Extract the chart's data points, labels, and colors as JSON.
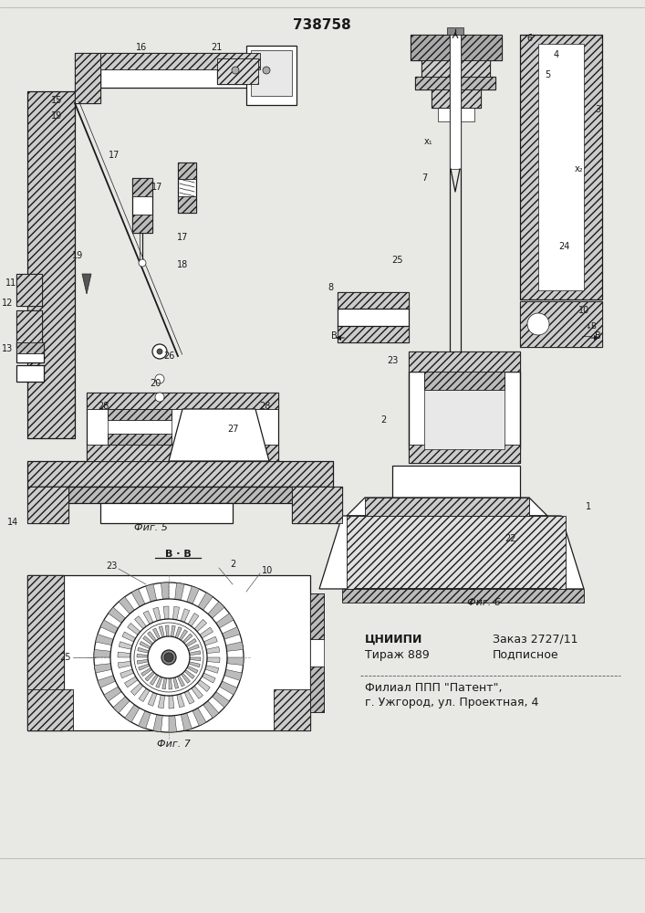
{
  "patent_number": "738758",
  "bg_color": "#e8e8e4",
  "lc": "#1a1a1a",
  "fig5_label": "Фиг. 5",
  "fig6_label": "Фиг. 6",
  "fig7_label": "Фиг. 7",
  "section_bb": "В · В",
  "cniipи": "ЦНИИПИ",
  "tirazh": "Тираж 889",
  "zakaz": "Заказ 2727/11",
  "podpisnoe": "Подписное",
  "filial": "Филиал ППП \"Патент\",",
  "uzhgorod": "г. Ужгород, ул. Проектная, 4"
}
